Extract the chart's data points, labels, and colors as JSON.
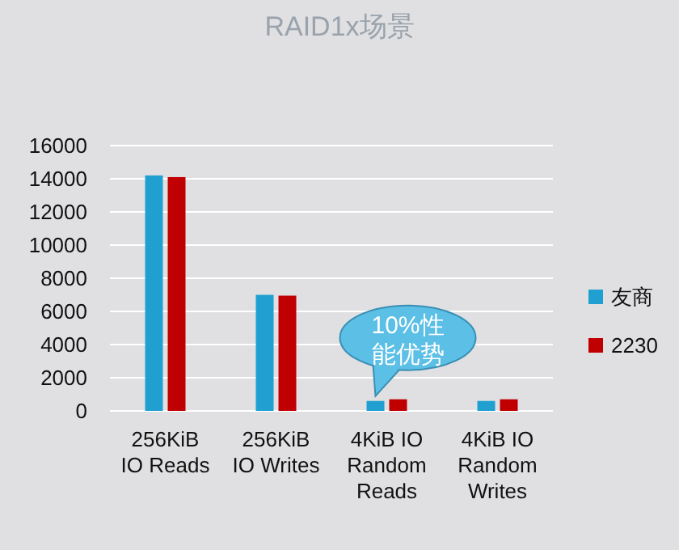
{
  "chart_data": {
    "type": "bar",
    "title": "RAID1x场景",
    "categories": [
      "256KiB IO Reads",
      "256KiB IO Writes",
      "4KiB IO Random Reads",
      "4KiB IO Random Writes"
    ],
    "series": [
      {
        "name": "友商",
        "color": "#1fa0d0",
        "values": [
          14200,
          7000,
          600,
          600
        ]
      },
      {
        "name": "2230",
        "color": "#c00000",
        "values": [
          14100,
          6950,
          700,
          700
        ]
      }
    ],
    "ylim": [
      0,
      16000
    ],
    "yticks": [
      0,
      2000,
      4000,
      6000,
      8000,
      10000,
      12000,
      14000,
      16000
    ],
    "grid": "y",
    "legend": "right",
    "annotations": [
      {
        "text": "10%性能优势",
        "x": "4KiB IO Random Reads",
        "y": 700
      }
    ]
  }
}
